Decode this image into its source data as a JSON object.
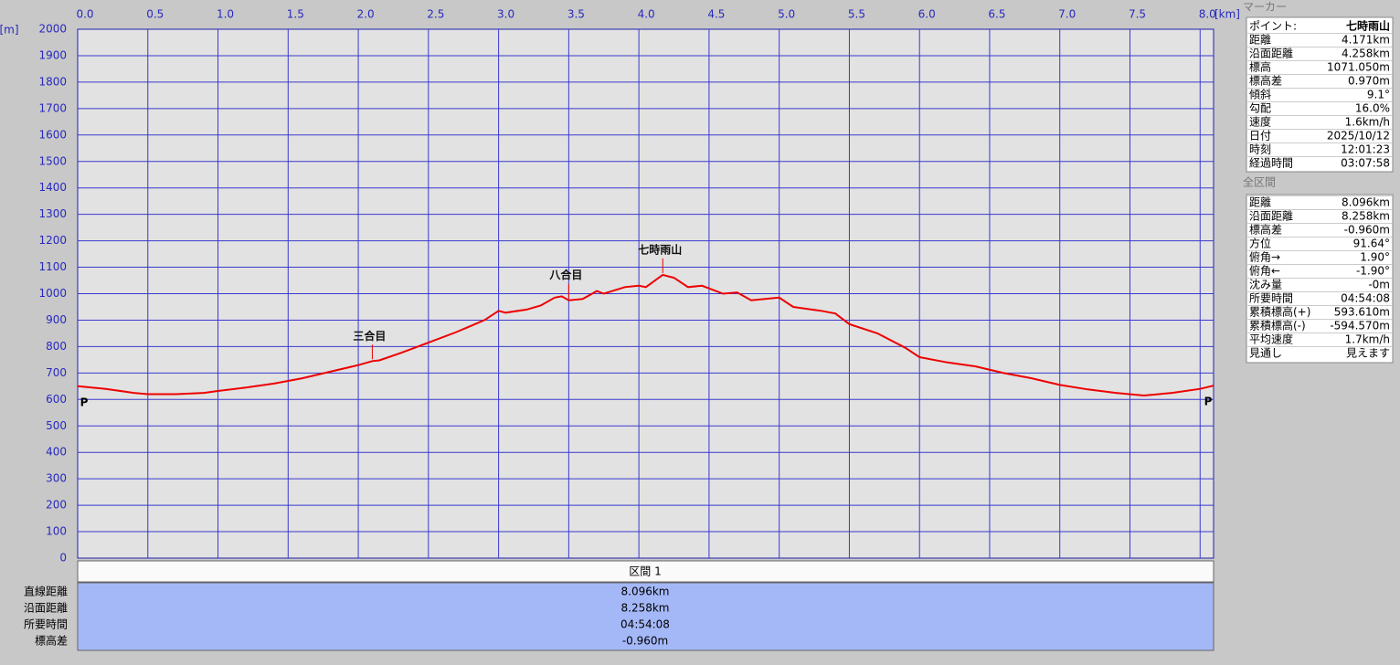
{
  "chart_data": {
    "type": "line",
    "x_unit": "[km]",
    "y_unit": "[m]",
    "color": "#ee0000",
    "grid": true,
    "xlim": [
      0,
      8.096
    ],
    "ylim": [
      0,
      2000
    ],
    "xticks": [
      {
        "value": 0,
        "label": "0.0"
      },
      0.5,
      {
        "value": 1,
        "label": "1.0"
      },
      1.5,
      {
        "value": 2,
        "label": "2.0"
      },
      2.5,
      {
        "value": 3,
        "label": "3.0"
      },
      3.5,
      {
        "value": 4,
        "label": "4.0"
      },
      4.5,
      {
        "value": 5,
        "label": "5.0"
      },
      5.5,
      {
        "value": 6,
        "label": "6.0"
      },
      6.5,
      {
        "value": 7,
        "label": "7.0"
      },
      7.5,
      {
        "value": 8,
        "label": "8.0"
      }
    ],
    "yticks": [
      0,
      100,
      200,
      300,
      400,
      500,
      600,
      700,
      800,
      900,
      1000,
      1100,
      1200,
      1300,
      1400,
      1500,
      1600,
      1700,
      1800,
      1900,
      2000
    ],
    "x": [
      0,
      0.2,
      0.4,
      0.5,
      0.7,
      0.9,
      1.0,
      1.2,
      1.4,
      1.6,
      1.8,
      2.0,
      2.1,
      2.15,
      2.3,
      2.5,
      2.7,
      2.9,
      3.0,
      3.05,
      3.2,
      3.3,
      3.4,
      3.45,
      3.5,
      3.6,
      3.7,
      3.75,
      3.9,
      4.0,
      4.05,
      4.17,
      4.25,
      4.35,
      4.45,
      4.6,
      4.7,
      4.8,
      4.9,
      5.0,
      5.1,
      5.3,
      5.4,
      5.5,
      5.7,
      5.9,
      6.0,
      6.2,
      6.4,
      6.6,
      6.8,
      7.0,
      7.2,
      7.4,
      7.6,
      7.8,
      8.0,
      8.096
    ],
    "values": [
      650,
      640,
      625,
      620,
      620,
      625,
      632,
      645,
      660,
      680,
      705,
      730,
      745,
      748,
      775,
      815,
      855,
      900,
      935,
      928,
      940,
      955,
      985,
      990,
      975,
      980,
      1010,
      1000,
      1025,
      1030,
      1025,
      1071,
      1060,
      1025,
      1030,
      1000,
      1005,
      975,
      980,
      985,
      950,
      935,
      925,
      885,
      850,
      795,
      760,
      740,
      725,
      700,
      680,
      655,
      638,
      625,
      615,
      625,
      640,
      652
    ],
    "annotations": [
      {
        "text": "P",
        "x": 0,
        "y": 650
      },
      {
        "text": "三合目",
        "x": 2.1,
        "y": 745
      },
      {
        "text": "八合目",
        "x": 3.5,
        "y": 975
      },
      {
        "text": "七時雨山",
        "x": 4.17,
        "y": 1071
      },
      {
        "text": "P",
        "x": 8.096,
        "y": 652
      }
    ]
  },
  "section_table": {
    "header": "区間 1",
    "rows": [
      {
        "label": "直線距離",
        "value": "8.096km"
      },
      {
        "label": "沿面距離",
        "value": "8.258km"
      },
      {
        "label": "所要時間",
        "value": "04:54:08"
      },
      {
        "label": "標高差",
        "value": "-0.960m"
      }
    ]
  },
  "marker_panel": {
    "title": "マーカー",
    "point_label": "ポイント:",
    "point_name": "七時雨山",
    "rows": [
      {
        "label": "距離",
        "value": "4.171km"
      },
      {
        "label": "沿面距離",
        "value": "4.258km"
      },
      {
        "label": "標高",
        "value": "1071.050m"
      },
      {
        "label": "標高差",
        "value": "0.970m"
      },
      {
        "label": "傾斜",
        "value": "9.1°"
      },
      {
        "label": "勾配",
        "value": "16.0%"
      },
      {
        "label": "速度",
        "value": "1.6km/h"
      },
      {
        "label": "日付",
        "value": "2025/10/12"
      },
      {
        "label": "時刻",
        "value": "12:01:23"
      },
      {
        "label": "経過時間",
        "value": "03:07:58"
      }
    ]
  },
  "total_panel": {
    "title": "全区間",
    "rows": [
      {
        "label": "距離",
        "value": "8.096km"
      },
      {
        "label": "沿面距離",
        "value": "8.258km"
      },
      {
        "label": "標高差",
        "value": "-0.960m"
      },
      {
        "label": "方位",
        "value": "91.64°"
      },
      {
        "label": "俯角→",
        "value": "1.90°"
      },
      {
        "label": "俯角←",
        "value": "-1.90°"
      },
      {
        "label": "沈み量",
        "value": "-0m"
      },
      {
        "label": "所要時間",
        "value": "04:54:08"
      },
      {
        "label": "累積標高(+)",
        "value": "593.610m"
      },
      {
        "label": "累積標高(-)",
        "value": "-594.570m"
      },
      {
        "label": "平均速度",
        "value": "1.7km/h"
      },
      {
        "label": "見通し",
        "value": "見えます"
      }
    ]
  }
}
